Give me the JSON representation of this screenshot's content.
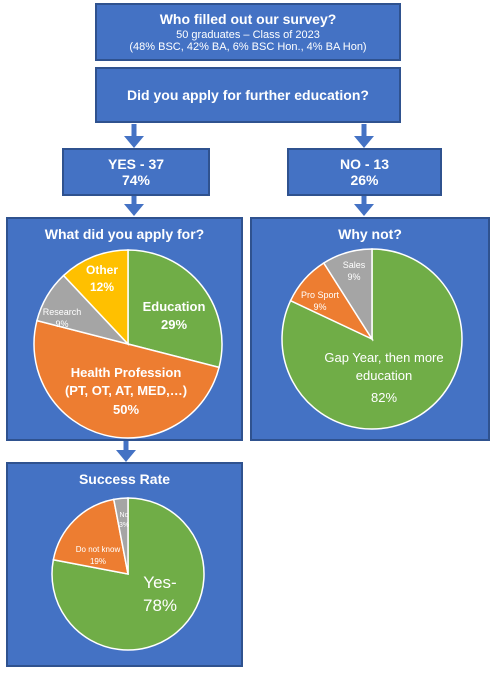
{
  "header": {
    "title": "Who filled out our survey?",
    "line1": "50 graduates – Class of 2023",
    "line2": "(48% BSC, 42% BA, 6% BSC Hon., 4% BA Hon)"
  },
  "question": "Did you apply for further education?",
  "yes_box": {
    "label": "YES - 37",
    "percent": "74%"
  },
  "no_box": {
    "label": "NO - 13",
    "percent": "26%"
  },
  "applied_panel": {
    "title": "What did you apply for?",
    "chart_data": {
      "type": "pie",
      "slices": [
        {
          "name": "Education",
          "value": 29,
          "label": "29%",
          "color": "#70ad47"
        },
        {
          "name": "Health Profession (PT, OT, AT, MED,…)",
          "value": 50,
          "label": "50%",
          "color": "#ed7d31"
        },
        {
          "name": "Research",
          "value": 9,
          "label": "9%",
          "color": "#a5a5a5"
        },
        {
          "name": "Other",
          "value": 12,
          "label": "12%",
          "color": "#ffc000"
        }
      ],
      "label_lines": {
        "education": "Education",
        "health_1": "Health Profession",
        "health_2": "(PT, OT, AT, MED,…)",
        "research": "Research",
        "other": "Other"
      }
    }
  },
  "why_not_panel": {
    "title": "Why not?",
    "chart_data": {
      "type": "pie",
      "slices": [
        {
          "name": "Gap Year, then more education",
          "value": 82,
          "label": "82%",
          "color": "#70ad47"
        },
        {
          "name": "Pro Sport",
          "value": 9,
          "label": "9%",
          "color": "#ed7d31"
        },
        {
          "name": "Sales",
          "value": 9,
          "label": "9%",
          "color": "#a5a5a5"
        }
      ],
      "label_lines": {
        "gap_1": "Gap Year, then more",
        "gap_2": "education",
        "pro_sport": "Pro Sport",
        "sales": "Sales"
      }
    }
  },
  "success_panel": {
    "title": "Success Rate",
    "chart_data": {
      "type": "pie",
      "slices": [
        {
          "name": "Yes-",
          "value": 78,
          "label": "78%",
          "color": "#70ad47"
        },
        {
          "name": "Do not know",
          "value": 19,
          "label": "19%",
          "color": "#ed7d31"
        },
        {
          "name": "No",
          "value": 3,
          "label": "3%",
          "color": "#a5a5a5"
        }
      ],
      "label_lines": {
        "yes": "Yes-",
        "dont_know": "Do not know",
        "no": "No"
      }
    }
  },
  "colors": {
    "box_fill": "#4472c4",
    "box_border": "#2f528f",
    "arrow": "#4472c4"
  }
}
